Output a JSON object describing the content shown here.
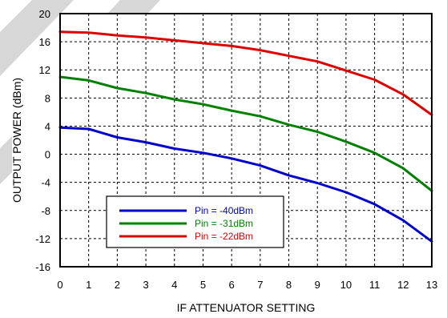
{
  "chart_data": {
    "type": "line",
    "xlabel": "IF ATTENUATOR SETTING",
    "ylabel": "OUTPUT POWER (dBm)",
    "xlim": [
      0,
      13
    ],
    "ylim": [
      -16,
      20
    ],
    "x_ticks": [
      0,
      1,
      2,
      3,
      4,
      5,
      6,
      7,
      8,
      9,
      10,
      11,
      12,
      13
    ],
    "y_ticks": [
      20,
      16,
      12,
      8,
      4,
      0,
      -4,
      -8,
      -12,
      -16
    ],
    "grid": true,
    "legend_placement": "bottom-left",
    "x": [
      0,
      1,
      2,
      3,
      4,
      5,
      6,
      7,
      8,
      9,
      10,
      11,
      12,
      13
    ],
    "series": [
      {
        "name": "Pin = -40dBm",
        "color": "#0000cc",
        "values": [
          3.8,
          3.6,
          2.4,
          1.7,
          0.8,
          0.2,
          -0.6,
          -1.6,
          -3.0,
          -4.1,
          -5.4,
          -7.1,
          -9.4,
          -12.4
        ]
      },
      {
        "name": "Pin = -31dBm",
        "color": "#008000",
        "values": [
          11.0,
          10.5,
          9.4,
          8.7,
          7.8,
          7.1,
          6.2,
          5.4,
          4.2,
          3.2,
          1.8,
          0.2,
          -2.0,
          -5.2
        ]
      },
      {
        "name": "Pin = -22dBm",
        "color": "#dd0000",
        "values": [
          17.4,
          17.3,
          16.9,
          16.6,
          16.2,
          15.8,
          15.4,
          14.8,
          14.0,
          13.2,
          11.9,
          10.6,
          8.5,
          5.6
        ]
      }
    ]
  }
}
